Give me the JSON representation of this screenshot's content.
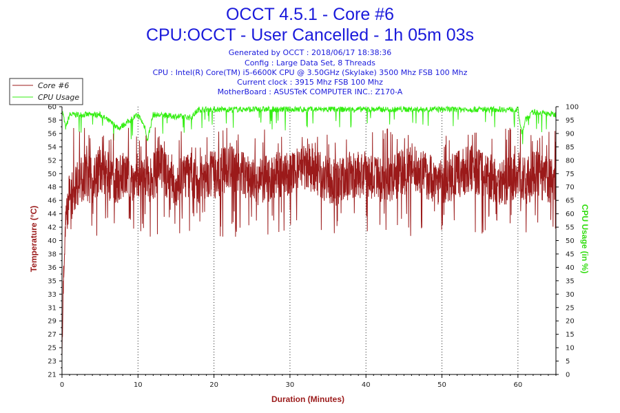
{
  "header": {
    "title_line1": "OCCT 4.5.1 - Core #6",
    "title_line2": "CPU:OCCT - User Cancelled - 1h 05m 03s",
    "info_lines": [
      "Generated by OCCT : 2018/06/17 18:38:36",
      "Config : Large Data Set, 8 Threads",
      "CPU : Intel(R) Core(TM) i5-6600K CPU @ 3.50GHz (Skylake) 3500 Mhz FSB 100 Mhz",
      "Current clock : 3915 Mhz FSB 100 Mhz",
      "MotherBoard : ASUSTeK COMPUTER INC.: Z170-A"
    ]
  },
  "legend": {
    "items": [
      {
        "label": "Core #6",
        "color": "#9b1a1a"
      },
      {
        "label": "CPU Usage",
        "color": "#33ee11"
      }
    ]
  },
  "chart_data": {
    "type": "line",
    "title": "OCCT 4.5.1 - Core #6",
    "xlabel": "Duration (Minutes)",
    "ylabel": "Temperature (°C)",
    "y2label": "CPU Usage (in %)",
    "xlim": [
      0,
      65
    ],
    "ylim": [
      21,
      60
    ],
    "y2lim": [
      0,
      100
    ],
    "x_ticks": [
      "0",
      "10",
      "20",
      "30",
      "40",
      "50",
      "60"
    ],
    "x_tick_values": [
      0,
      10,
      20,
      30,
      40,
      50,
      60
    ],
    "y_ticks": [
      "21",
      "23",
      "25",
      "27",
      "29",
      "31",
      "33",
      "35",
      "36",
      "38",
      "40",
      "42",
      "44",
      "46",
      "48",
      "50",
      "52",
      "54",
      "56",
      "58",
      "60"
    ],
    "y2_ticks": [
      "0",
      "5",
      "10",
      "15",
      "20",
      "25",
      "30",
      "35",
      "40",
      "45",
      "50",
      "55",
      "60",
      "65",
      "70",
      "75",
      "80",
      "85",
      "90",
      "95",
      "100"
    ],
    "grid": "dotted vertical at x ticks",
    "legend_position": "top-left",
    "series": [
      {
        "name": "Core #6",
        "axis": "left",
        "color": "#9b1a1a",
        "x": [
          0,
          0.2,
          0.5,
          1,
          2,
          3,
          4,
          5,
          6,
          7,
          8,
          9,
          10,
          11,
          12,
          13,
          14,
          15,
          16,
          17,
          18,
          19,
          20,
          22,
          24,
          26,
          28,
          30,
          32,
          34,
          36,
          38,
          40,
          42,
          44,
          46,
          48,
          50,
          52,
          54,
          56,
          58,
          60,
          61,
          62,
          63,
          64,
          65
        ],
        "values": [
          25,
          36,
          44,
          47,
          49,
          50,
          49,
          51,
          50,
          49,
          50,
          49,
          50,
          49,
          50,
          51,
          50,
          49,
          50,
          50,
          49,
          50,
          50,
          51,
          50,
          49,
          50,
          50,
          51,
          50,
          49,
          50,
          50,
          49,
          50,
          51,
          50,
          49,
          50,
          51,
          50,
          49,
          50,
          49,
          50,
          50,
          49,
          49
        ],
        "range_min": 41,
        "range_max": 57
      },
      {
        "name": "CPU Usage",
        "axis": "right",
        "color": "#33ee11",
        "x": [
          0,
          0.5,
          1,
          5,
          7.5,
          10,
          11,
          11.2,
          12,
          17,
          18,
          20,
          30,
          40,
          50,
          60,
          60.5,
          61,
          62,
          65
        ],
        "values": [
          99,
          92,
          97,
          97,
          92,
          97,
          92,
          87,
          97,
          96,
          99,
          99,
          99,
          99,
          99,
          99,
          90,
          95,
          98,
          97
        ]
      }
    ]
  }
}
